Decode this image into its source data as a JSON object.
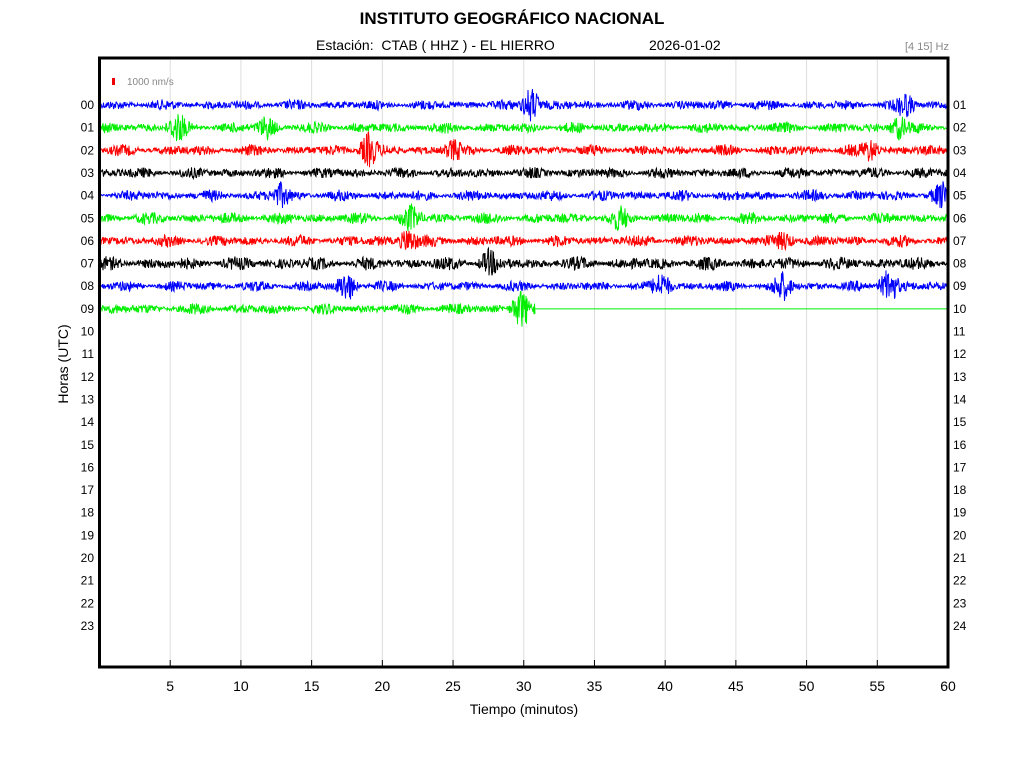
{
  "header": {
    "title": "INSTITUTO GEOGRÁFICO NACIONAL",
    "station": "Estación:  CTAB ( HHZ ) - EL HIERRO",
    "date": "2026-01-02",
    "band": "[4 15] Hz"
  },
  "chart_data": {
    "type": "line",
    "title": "INSTITUTO GEOGRÁFICO NACIONAL",
    "xlabel": "Tiempo (minutos)",
    "ylabel": "Horas (UTC)",
    "xlim": [
      0,
      60
    ],
    "x_ticks": [
      "5",
      "10",
      "15",
      "20",
      "25",
      "30",
      "35",
      "40",
      "45",
      "50",
      "55",
      "60"
    ],
    "y_ticks_left": [
      "00",
      "01",
      "02",
      "03",
      "04",
      "05",
      "06",
      "07",
      "08",
      "09",
      "10",
      "11",
      "12",
      "13",
      "14",
      "15",
      "16",
      "17",
      "18",
      "19",
      "20",
      "21",
      "22",
      "23"
    ],
    "y_ticks_right": [
      "01",
      "02",
      "03",
      "04",
      "05",
      "06",
      "07",
      "08",
      "09",
      "10",
      "11",
      "12",
      "13",
      "14",
      "15",
      "16",
      "17",
      "18",
      "19",
      "20",
      "21",
      "22",
      "23",
      "24"
    ],
    "grid": "vertical",
    "scale_label": "1000 nm/s",
    "scale_color": "#ee0000",
    "color_cycle": [
      "#0000ff",
      "#00ee00",
      "#ff0000",
      "#000000"
    ],
    "series": [
      {
        "hour": "00",
        "color": "#0000ff",
        "end_minute": 60,
        "noise_amplitude": 0.28,
        "events": [
          {
            "minute": 30.5,
            "amplitude": 0.9
          },
          {
            "minute": 57.0,
            "amplitude": 0.5
          }
        ]
      },
      {
        "hour": "01",
        "color": "#00ee00",
        "end_minute": 60,
        "noise_amplitude": 0.3,
        "events": [
          {
            "minute": 5.5,
            "amplitude": 0.6
          },
          {
            "minute": 11.8,
            "amplitude": 0.5
          },
          {
            "minute": 56.5,
            "amplitude": 0.5
          }
        ]
      },
      {
        "hour": "02",
        "color": "#ff0000",
        "end_minute": 60,
        "noise_amplitude": 0.3,
        "events": [
          {
            "minute": 19.0,
            "amplitude": 0.8
          },
          {
            "minute": 25.0,
            "amplitude": 0.4
          },
          {
            "minute": 54.5,
            "amplitude": 0.5
          }
        ]
      },
      {
        "hour": "03",
        "color": "#000000",
        "end_minute": 60,
        "noise_amplitude": 0.3,
        "events": []
      },
      {
        "hour": "04",
        "color": "#0000ff",
        "end_minute": 60,
        "noise_amplitude": 0.3,
        "events": [
          {
            "minute": 12.8,
            "amplitude": 0.5
          },
          {
            "minute": 59.6,
            "amplitude": 0.5
          }
        ]
      },
      {
        "hour": "05",
        "color": "#00ee00",
        "end_minute": 60,
        "noise_amplitude": 0.32,
        "events": [
          {
            "minute": 22.0,
            "amplitude": 0.5
          },
          {
            "minute": 36.8,
            "amplitude": 0.4
          }
        ]
      },
      {
        "hour": "06",
        "color": "#ff0000",
        "end_minute": 60,
        "noise_amplitude": 0.32,
        "events": [
          {
            "minute": 21.8,
            "amplitude": 0.6
          },
          {
            "minute": 48.5,
            "amplitude": 0.4
          }
        ]
      },
      {
        "hour": "07",
        "color": "#000000",
        "end_minute": 60,
        "noise_amplitude": 0.36,
        "events": [
          {
            "minute": 27.5,
            "amplitude": 0.5
          }
        ]
      },
      {
        "hour": "08",
        "color": "#0000ff",
        "end_minute": 60,
        "noise_amplitude": 0.28,
        "events": [
          {
            "minute": 17.5,
            "amplitude": 0.7
          },
          {
            "minute": 39.8,
            "amplitude": 0.6
          },
          {
            "minute": 48.3,
            "amplitude": 0.6
          },
          {
            "minute": 55.8,
            "amplitude": 0.9
          }
        ]
      },
      {
        "hour": "09",
        "color": "#00ee00",
        "end_minute": 30.8,
        "noise_amplitude": 0.3,
        "events": [
          {
            "minute": 29.8,
            "amplitude": 0.9
          }
        ]
      }
    ]
  }
}
